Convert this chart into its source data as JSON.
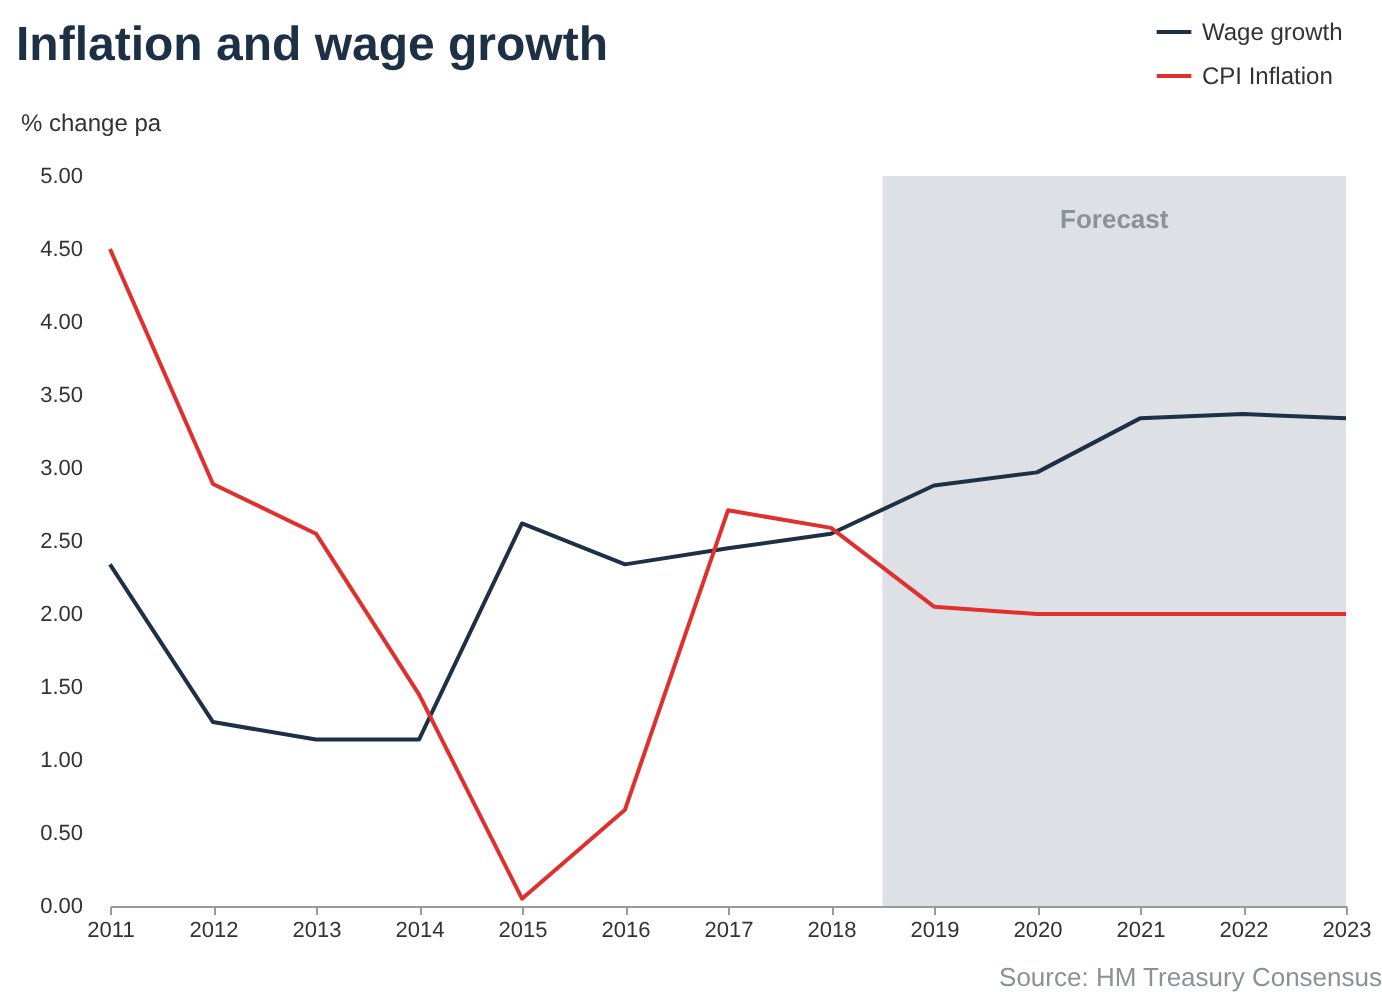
{
  "chart_data": {
    "type": "line",
    "title": "Inflation and wage growth",
    "ylabel": "% change pa",
    "x": [
      2011,
      2012,
      2013,
      2014,
      2015,
      2016,
      2017,
      2018,
      2019,
      2020,
      2021,
      2022,
      2023
    ],
    "xlim": [
      2011,
      2023
    ],
    "xticks": [
      2011,
      2012,
      2013,
      2014,
      2015,
      2016,
      2017,
      2018,
      2019,
      2020,
      2021,
      2022,
      2023
    ],
    "ylim": [
      0,
      5
    ],
    "yticks": [
      {
        "value": 0,
        "label": "0.00"
      },
      {
        "value": 0.5,
        "label": "0.50"
      },
      {
        "value": 1,
        "label": "1.00"
      },
      {
        "value": 1.5,
        "label": "1.50"
      },
      {
        "value": 2,
        "label": "2.00"
      },
      {
        "value": 2.5,
        "label": "2.50"
      },
      {
        "value": 3,
        "label": "3.00"
      },
      {
        "value": 3.5,
        "label": "3.50"
      },
      {
        "value": 4,
        "label": "4.00"
      },
      {
        "value": 4.5,
        "label": "4.50"
      },
      {
        "value": 5,
        "label": "5.00"
      }
    ],
    "series": [
      {
        "name": "Wage growth",
        "color": "#1e3045",
        "values": [
          2.34,
          1.26,
          1.14,
          1.14,
          2.62,
          2.34,
          2.45,
          2.55,
          2.88,
          2.97,
          3.34,
          3.37,
          3.34
        ]
      },
      {
        "name": "CPI Inflation",
        "color": "#e0302e",
        "values": [
          4.5,
          2.89,
          2.55,
          1.45,
          0.05,
          0.66,
          2.71,
          2.59,
          2.05,
          2.0,
          2.0,
          2.0,
          2.0
        ]
      }
    ],
    "bands": [
      {
        "axis": "x",
        "from": 2018.5,
        "to": 2023,
        "label": "Forecast",
        "color": "#dde0e4"
      }
    ],
    "legend": "top right",
    "grid": false,
    "marker": "none",
    "line_style": "solid",
    "annotations": [
      "Source: HM Treasury Consensus"
    ]
  }
}
